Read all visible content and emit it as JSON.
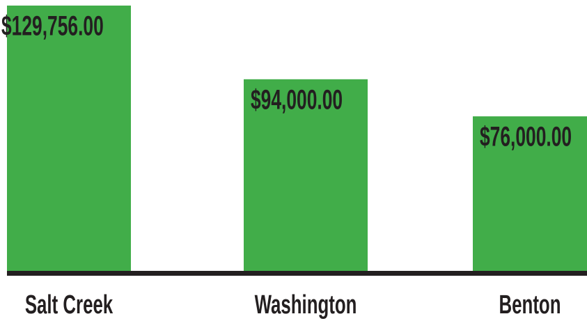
{
  "chart_data": {
    "type": "bar",
    "categories": [
      "Salt Creek",
      "Washington",
      "Benton"
    ],
    "values": [
      129756,
      94000,
      76000
    ],
    "value_labels": [
      "$129,756.00",
      "$94,000.00",
      "$76,000.00"
    ],
    "color": "#41ad49"
  }
}
